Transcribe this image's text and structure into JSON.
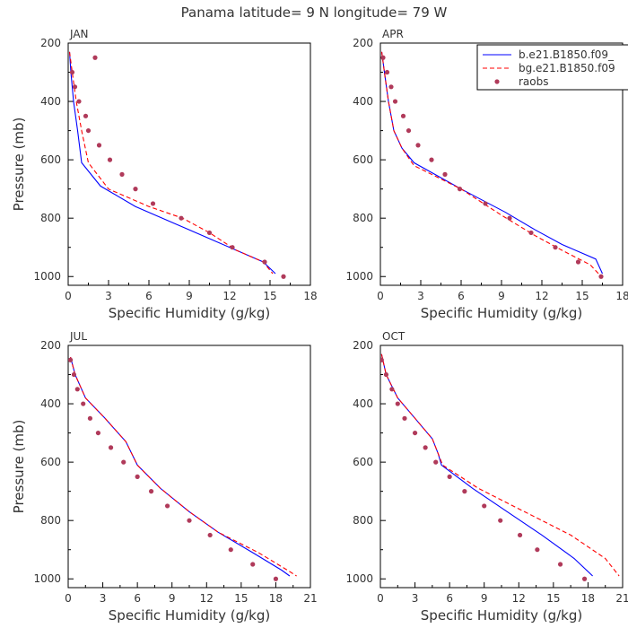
{
  "title": "Panama  latitude= 9 N longitude= 79 W",
  "colors": {
    "model1": "#0000ff",
    "model2": "#ff0000",
    "obs": "#b03a5a",
    "axis": "#000000",
    "text": "#333333"
  },
  "chart_data": [
    {
      "type": "line",
      "panel_label": "JAN",
      "xlabel": "Specific Humidity (g/kg)",
      "ylabel": "Pressure (mb)",
      "xlim": [
        0,
        18
      ],
      "xticks": [
        0,
        3,
        6,
        9,
        12,
        15,
        18
      ],
      "ylim": [
        1030,
        200
      ],
      "yticks": [
        200,
        400,
        600,
        800,
        1000
      ],
      "legend": null,
      "series": [
        {
          "name": "b.e21.B1850.f09_",
          "style": "solid",
          "color": "#0000ff",
          "x": [
            0.1,
            0.2,
            0.4,
            0.7,
            1.0,
            2.4,
            5.0,
            8.0,
            10.5,
            12.5,
            14.5,
            15.4
          ],
          "y": [
            230,
            300,
            400,
            500,
            610,
            690,
            760,
            820,
            870,
            910,
            950,
            990
          ]
        },
        {
          "name": "bg.e21.B1850.f09",
          "style": "dashed",
          "color": "#ff0000",
          "x": [
            0.1,
            0.3,
            0.6,
            1.0,
            1.5,
            3.0,
            6.0,
            8.5,
            10.5,
            12.5,
            14.5,
            15.2
          ],
          "y": [
            230,
            300,
            400,
            500,
            610,
            700,
            760,
            800,
            850,
            910,
            950,
            990
          ]
        },
        {
          "name": "raobs",
          "style": "points",
          "color": "#b03a5a",
          "x": [
            2.0,
            0.3,
            0.5,
            0.8,
            1.3,
            1.5,
            2.3,
            3.1,
            4.0,
            5.0,
            6.3,
            8.4,
            10.5,
            12.2,
            14.6,
            16.0
          ],
          "y": [
            250,
            300,
            350,
            400,
            450,
            500,
            550,
            600,
            650,
            700,
            750,
            800,
            850,
            900,
            950,
            1000
          ]
        }
      ]
    },
    {
      "type": "line",
      "panel_label": "APR",
      "xlabel": "Specific Humidity (g/kg)",
      "ylabel": "",
      "xlim": [
        0,
        18
      ],
      "xticks": [
        0,
        3,
        6,
        9,
        12,
        15,
        18
      ],
      "ylim": [
        1030,
        200
      ],
      "yticks": [
        200,
        400,
        600,
        800,
        1000
      ],
      "legend": "top-right",
      "series": [
        {
          "name": "b.e21.B1850.f09_",
          "style": "solid",
          "color": "#0000ff",
          "x": [
            0.1,
            0.3,
            0.6,
            1.0,
            1.6,
            2.5,
            6.0,
            9.3,
            11.5,
            13.5,
            16.0,
            16.5
          ],
          "y": [
            230,
            300,
            400,
            500,
            560,
            610,
            700,
            780,
            840,
            890,
            940,
            990
          ]
        },
        {
          "name": "bg.e21.B1850.f09",
          "style": "dashed",
          "color": "#ff0000",
          "x": [
            0.1,
            0.3,
            0.6,
            1.0,
            1.6,
            2.5,
            6.0,
            9.0,
            11.5,
            13.5,
            15.6,
            16.4
          ],
          "y": [
            230,
            300,
            400,
            500,
            560,
            620,
            700,
            790,
            860,
            910,
            960,
            1000
          ]
        },
        {
          "name": "raobs",
          "style": "points",
          "color": "#b03a5a",
          "x": [
            0.2,
            0.5,
            0.8,
            1.1,
            1.7,
            2.1,
            2.8,
            3.8,
            4.8,
            5.9,
            7.8,
            9.6,
            11.2,
            13.0,
            14.7,
            16.4
          ],
          "y": [
            250,
            300,
            350,
            400,
            450,
            500,
            550,
            600,
            650,
            700,
            750,
            800,
            850,
            900,
            950,
            1000
          ]
        }
      ]
    },
    {
      "type": "line",
      "panel_label": "JUL",
      "xlabel": "Specific Humidity (g/kg)",
      "ylabel": "Pressure (mb)",
      "xlim": [
        0,
        21
      ],
      "xticks": [
        0,
        3,
        6,
        9,
        12,
        15,
        18,
        21
      ],
      "ylim": [
        1030,
        200
      ],
      "yticks": [
        200,
        400,
        600,
        800,
        1000
      ],
      "legend": null,
      "series": [
        {
          "name": "b.e21.B1850.f09_",
          "style": "solid",
          "color": "#0000ff",
          "x": [
            0.2,
            0.6,
            1.5,
            3.2,
            5.0,
            6.0,
            8.0,
            10.5,
            13.0,
            16.0,
            18.5,
            19.2
          ],
          "y": [
            240,
            300,
            380,
            450,
            530,
            610,
            690,
            770,
            840,
            910,
            970,
            990
          ]
        },
        {
          "name": "bg.e21.B1850.f09",
          "style": "dashed",
          "color": "#ff0000",
          "x": [
            0.2,
            0.6,
            1.5,
            3.2,
            5.0,
            6.0,
            8.0,
            10.5,
            13.0,
            16.5,
            19.0,
            19.8
          ],
          "y": [
            240,
            300,
            380,
            450,
            530,
            610,
            690,
            770,
            840,
            910,
            970,
            990
          ]
        },
        {
          "name": "raobs",
          "style": "points",
          "color": "#b03a5a",
          "x": [
            0.2,
            0.5,
            0.8,
            1.3,
            1.9,
            2.6,
            3.7,
            4.8,
            6.0,
            7.2,
            8.6,
            10.5,
            12.3,
            14.1,
            16.0,
            18.0
          ],
          "y": [
            250,
            300,
            350,
            400,
            450,
            500,
            550,
            600,
            650,
            700,
            750,
            800,
            850,
            900,
            950,
            1000
          ]
        }
      ]
    },
    {
      "type": "line",
      "panel_label": "OCT",
      "xlabel": "Specific Humidity (g/kg)",
      "ylabel": "",
      "xlim": [
        0,
        21
      ],
      "xticks": [
        0,
        3,
        6,
        9,
        12,
        15,
        18,
        21
      ],
      "ylim": [
        1030,
        200
      ],
      "yticks": [
        200,
        400,
        600,
        800,
        1000
      ],
      "legend": null,
      "series": [
        {
          "name": "b.e21.B1850.f09_",
          "style": "solid",
          "color": "#0000ff",
          "x": [
            0.1,
            0.5,
            1.5,
            3.0,
            4.5,
            5.0,
            5.3,
            8.0,
            11.0,
            14.0,
            16.8,
            18.4
          ],
          "y": [
            230,
            300,
            380,
            450,
            520,
            570,
            610,
            690,
            770,
            850,
            930,
            990
          ]
        },
        {
          "name": "bg.e21.B1850.f09",
          "style": "dashed",
          "color": "#ff0000",
          "x": [
            0.1,
            0.5,
            1.5,
            3.0,
            4.5,
            5.0,
            5.4,
            8.5,
            12.5,
            16.5,
            19.5,
            20.7
          ],
          "y": [
            230,
            300,
            380,
            450,
            520,
            570,
            610,
            690,
            770,
            850,
            930,
            990
          ]
        },
        {
          "name": "raobs",
          "style": "points",
          "color": "#b03a5a",
          "x": [
            0.1,
            0.5,
            1.0,
            1.5,
            2.1,
            3.0,
            3.9,
            4.8,
            6.0,
            7.3,
            9.0,
            10.4,
            12.1,
            13.6,
            15.6,
            17.7
          ],
          "y": [
            250,
            300,
            350,
            400,
            450,
            500,
            550,
            600,
            650,
            700,
            750,
            800,
            850,
            900,
            950,
            1000
          ]
        }
      ]
    }
  ]
}
